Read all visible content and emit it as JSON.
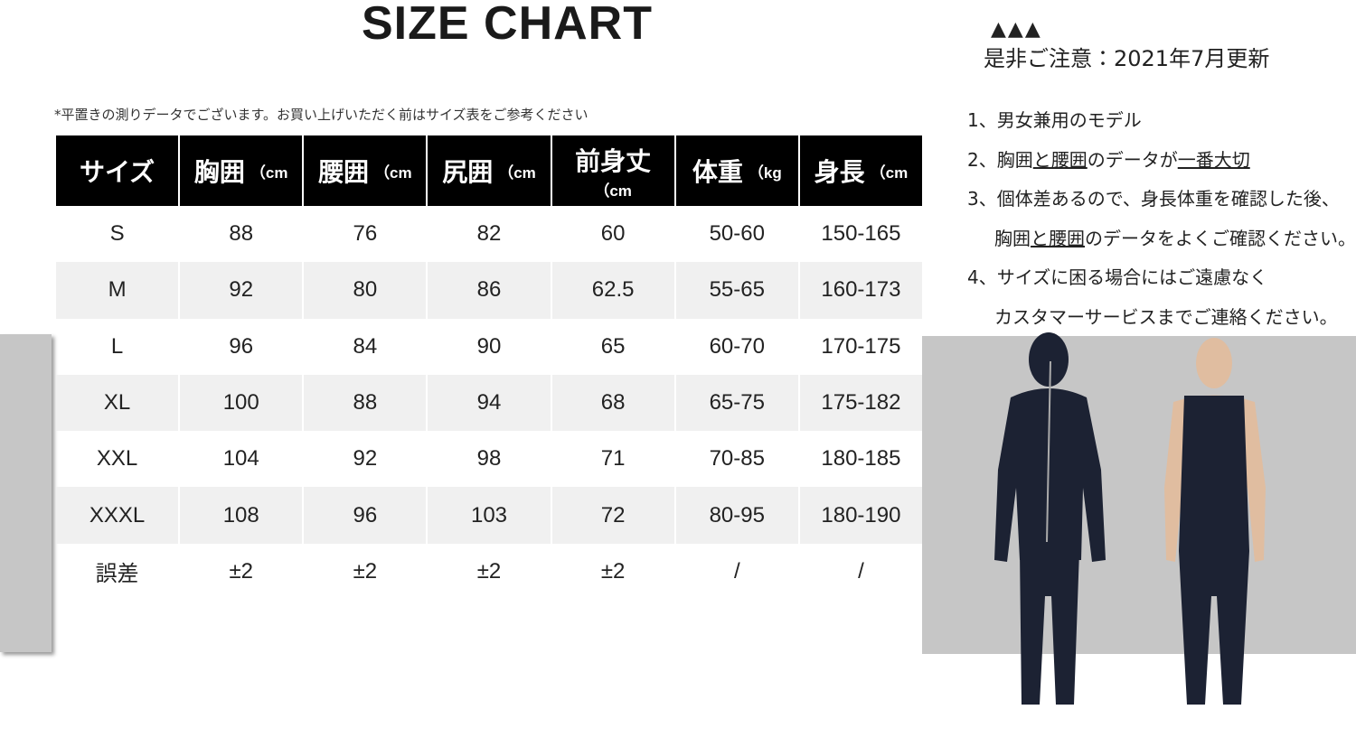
{
  "title": "SIZE CHART",
  "note": "*平置きの測りデータでございます。お買い上げいただく前はサイズ表をご参考ください",
  "table": {
    "header": [
      {
        "label": "サイズ"
      },
      {
        "label": "胸囲",
        "unit": "（cm"
      },
      {
        "label": "腰囲",
        "unit": "（cm"
      },
      {
        "label": "尻囲",
        "unit": "（cm"
      },
      {
        "label": "前身丈",
        "unit": "（cm"
      },
      {
        "label": "体重",
        "unit": "（kg"
      },
      {
        "label": "身長",
        "unit": "（cm"
      }
    ],
    "rows": [
      [
        "S",
        "88",
        "76",
        "82",
        "60",
        "50-60",
        "150-165"
      ],
      [
        "M",
        "92",
        "80",
        "86",
        "62.5",
        "55-65",
        "160-173"
      ],
      [
        "L",
        "96",
        "84",
        "90",
        "65",
        "60-70",
        "170-175"
      ],
      [
        "XL",
        "100",
        "88",
        "94",
        "68",
        "65-75",
        "175-182"
      ],
      [
        "XXL",
        "104",
        "92",
        "98",
        "71",
        "70-85",
        "180-185"
      ],
      [
        "XXXL",
        "108",
        "96",
        "103",
        "72",
        "80-95",
        "180-190"
      ],
      [
        "誤差",
        "±2",
        "±2",
        "±2",
        "±2",
        "/",
        "/"
      ]
    ]
  },
  "notice": {
    "marks": "▲▲▲",
    "text": "是非ご注意：2021年7月更新"
  },
  "notes": [
    [
      {
        "text": "1、男女兼用のモデル",
        "underline": false
      }
    ],
    [
      {
        "text": "2、胸囲",
        "underline": false
      },
      {
        "text": "と腰囲",
        "underline": true
      },
      {
        "text": "のデータが",
        "underline": false
      },
      {
        "text": "一番大切",
        "underline": true
      }
    ],
    [
      {
        "text": "3、個体差あるので、身長体重を確認した後、",
        "underline": false
      }
    ],
    [
      {
        "text": "胸囲",
        "underline": false
      },
      {
        "text": "と腰囲",
        "underline": true
      },
      {
        "text": "のデータをよくご確認ください。",
        "underline": false
      }
    ],
    [
      {
        "text": "4、サイズに困る場合にはご遠慮なく",
        "underline": false
      }
    ],
    [
      {
        "text": "カスタマーサービスまでご連絡ください。",
        "underline": false
      }
    ]
  ]
}
